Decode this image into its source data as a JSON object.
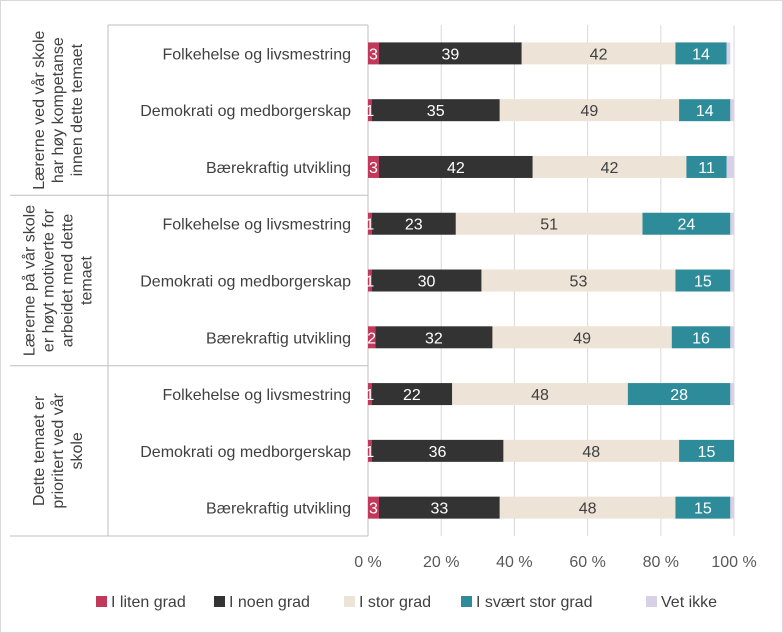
{
  "chart_data": {
    "type": "bar",
    "orientation": "horizontal",
    "stacked": "100%",
    "xlim": [
      0,
      100
    ],
    "x_ticks": [
      "0 %",
      "20 %",
      "40 %",
      "60 %",
      "80 %",
      "100 %"
    ],
    "grid": true,
    "legend_position": "bottom",
    "groups": [
      {
        "label": "Lærerne ved vår skole har høy kompetanse innen dette temaet",
        "label_lines": [
          "Lærerne ved vår skole",
          "har høy kompetanse",
          "innen dette temaet"
        ],
        "categories": [
          "Folkehelse og livsmestring",
          "Demokrati og medborgerskap",
          "Bærekraftig utvikling"
        ]
      },
      {
        "label": "Lærerne på vår skole er høyt motiverte for arbeidet med dette temaet",
        "label_lines": [
          "Lærerne på vår skole",
          "er høyt motiverte for",
          "arbeidet med dette",
          "temaet"
        ],
        "categories": [
          "Folkehelse og livsmestring",
          "Demokrati og medborgerskap",
          "Bærekraftig utvikling"
        ]
      },
      {
        "label": "Dette temaet er prioritert ved vår skole",
        "label_lines": [
          "Dette temaet er",
          "prioritert ved vår",
          "skole"
        ],
        "categories": [
          "Folkehelse og livsmestring",
          "Demokrati og medborgerskap",
          "Bærekraftig utvikling"
        ]
      }
    ],
    "series": [
      {
        "name": "I liten grad",
        "color": "#c0395a",
        "label_color": "#ffffff",
        "values": [
          3,
          1,
          3,
          1,
          1,
          2,
          1,
          1,
          3
        ]
      },
      {
        "name": "I noen grad",
        "color": "#333333",
        "label_color": "#ffffff",
        "values": [
          39,
          35,
          42,
          23,
          30,
          32,
          22,
          36,
          33
        ]
      },
      {
        "name": "I stor grad",
        "color": "#ede3d6",
        "label_color": "#404040",
        "values": [
          42,
          49,
          42,
          51,
          53,
          49,
          48,
          48,
          48
        ]
      },
      {
        "name": "I svært stor grad",
        "color": "#2e8c9a",
        "label_color": "#ffffff",
        "values": [
          14,
          14,
          11,
          24,
          15,
          16,
          28,
          15,
          15
        ]
      },
      {
        "name": "Vet ikke",
        "color": "#d8d0e6",
        "label_color": "#404040",
        "values": [
          1,
          1,
          2,
          1,
          1,
          1,
          1,
          0,
          1
        ]
      }
    ],
    "hidden_labels": [
      "Vet ikke"
    ]
  }
}
